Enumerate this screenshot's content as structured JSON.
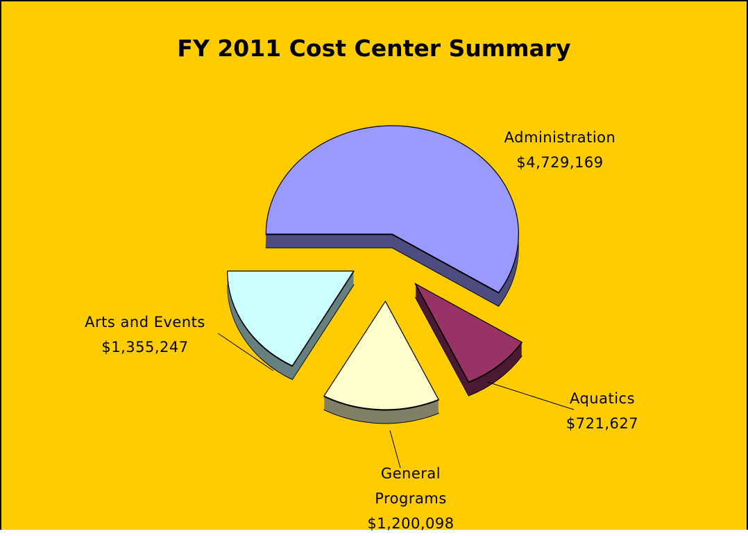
{
  "chart_data": {
    "type": "pie",
    "title": "FY 2011 Cost Center Summary",
    "categories": [
      "Administration",
      "Aquatics",
      "General Programs",
      "Arts and Events"
    ],
    "values": [
      4729169,
      721627,
      1200098,
      1355247
    ],
    "value_labels": [
      "$4,729,169",
      "$721,627",
      "$1,200,098",
      "$1,355,247"
    ],
    "colors": [
      "#9999FF",
      "#993366",
      "#FFFFCC",
      "#CCFFFF"
    ]
  }
}
